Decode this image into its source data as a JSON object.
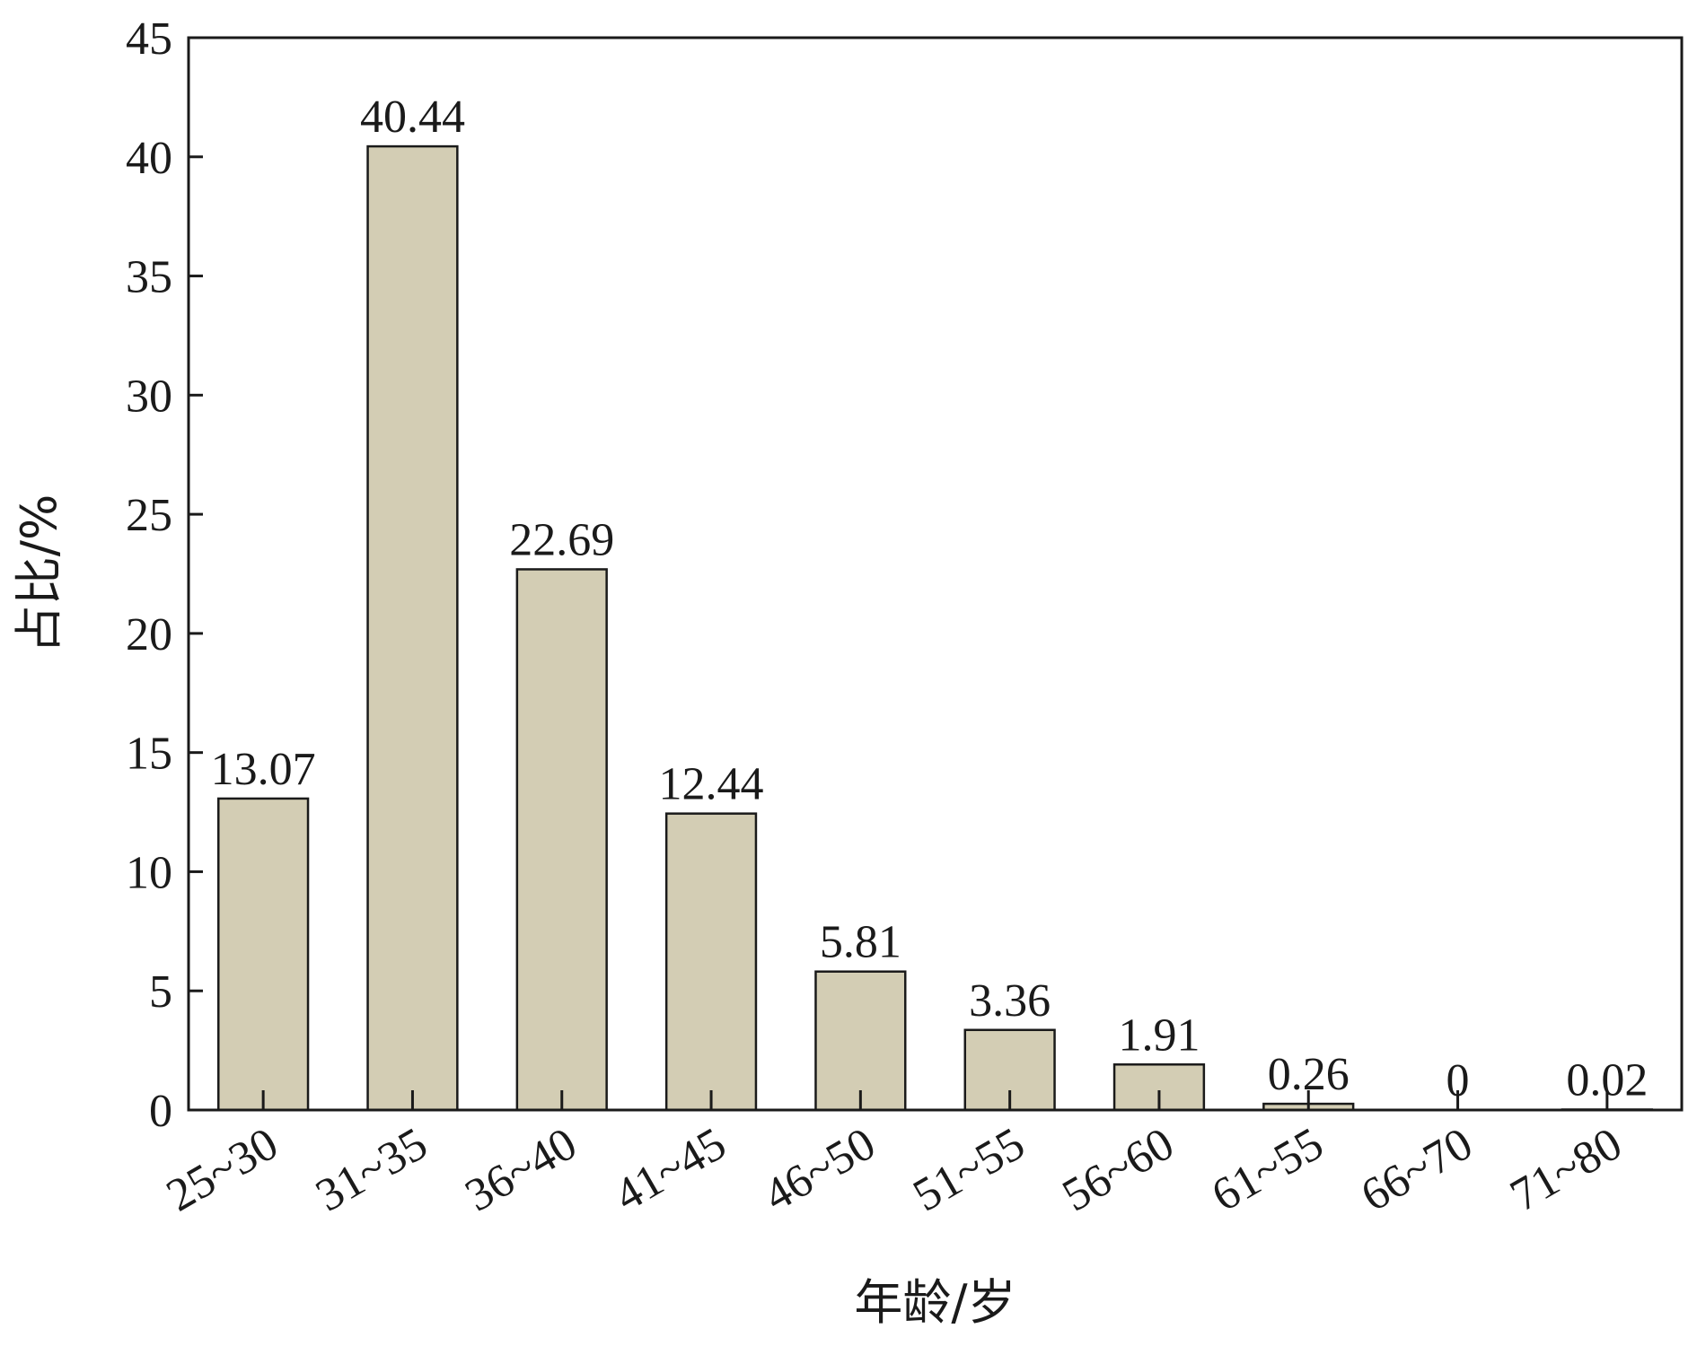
{
  "chart_data": {
    "type": "bar",
    "categories": [
      "25~30",
      "31~35",
      "36~40",
      "41~45",
      "46~50",
      "51~55",
      "56~60",
      "61~55",
      "66~70",
      "71~80"
    ],
    "values": [
      13.07,
      40.44,
      22.69,
      12.44,
      5.81,
      3.36,
      1.91,
      0.26,
      0,
      0.02
    ],
    "value_labels": [
      "13.07",
      "40.44",
      "22.69",
      "12.44",
      "5.81",
      "3.36",
      "1.91",
      "0.26",
      "0",
      "0.02"
    ],
    "xlabel": "年龄/岁",
    "ylabel": "占比/%",
    "ylim": [
      0,
      45
    ],
    "yticks": [
      0,
      5,
      10,
      15,
      20,
      25,
      30,
      35,
      40,
      45
    ],
    "grid": false,
    "bar_color": "#d3cdb4",
    "bar_edge_color": "#1a1a1a"
  }
}
